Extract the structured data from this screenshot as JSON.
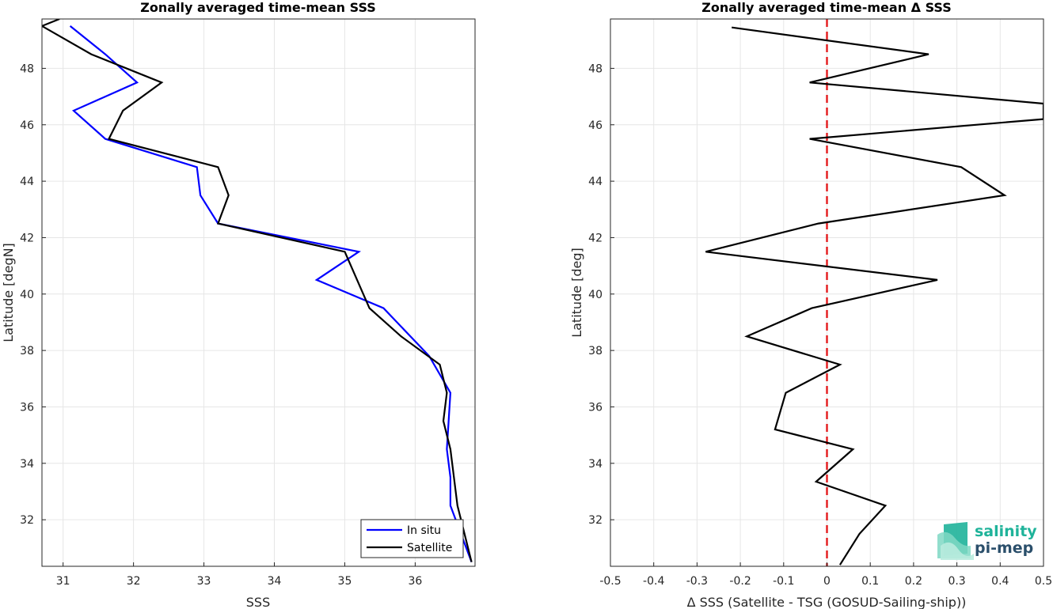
{
  "chart_data": [
    {
      "type": "line",
      "title": "Zonally averaged time-mean SSS",
      "xlabel": "SSS",
      "ylabel": "Latitude [degN]",
      "xlim": [
        30.7,
        36.85
      ],
      "ylim": [
        30.35,
        49.75
      ],
      "xticks": [
        31,
        32,
        33,
        34,
        35,
        36
      ],
      "yticks": [
        32,
        34,
        36,
        38,
        40,
        42,
        44,
        46,
        48
      ],
      "grid": true,
      "legend": "bottom-right",
      "series": [
        {
          "name": "In situ",
          "color": "#0000ff",
          "x": [
            31.1,
            31.6,
            32.05,
            31.15,
            31.6,
            32.9,
            32.95,
            33.2,
            35.2,
            34.6,
            35.55,
            36.2,
            36.5,
            36.45,
            36.5,
            36.5,
            36.8
          ],
          "y": [
            49.5,
            48.5,
            47.5,
            46.5,
            45.5,
            44.5,
            43.5,
            42.5,
            41.5,
            40.5,
            39.5,
            37.8,
            36.5,
            34.5,
            33.5,
            32.5,
            30.5
          ]
        },
        {
          "name": "Satellite",
          "color": "#000000",
          "x": [
            30.95,
            30.7,
            31.4,
            32.4,
            31.85,
            31.65,
            33.2,
            33.35,
            33.2,
            35.0,
            35.35,
            35.8,
            36.35,
            36.45,
            36.4,
            36.5,
            36.6,
            36.8
          ],
          "y": [
            49.75,
            49.5,
            48.5,
            47.5,
            46.5,
            45.5,
            44.5,
            43.5,
            42.5,
            41.5,
            39.5,
            38.5,
            37.5,
            36.5,
            35.5,
            34.5,
            32.5,
            30.5
          ]
        }
      ]
    },
    {
      "type": "line",
      "title": "Zonally averaged time-mean Δ SSS",
      "xlabel": "Δ SSS (Satellite - TSG (GOSUD-Sailing-ship))",
      "ylabel": "Latitude [deg]",
      "xlim": [
        -0.5,
        0.5
      ],
      "ylim": [
        30.35,
        49.75
      ],
      "xticks": [
        -0.5,
        -0.4,
        -0.3,
        -0.2,
        -0.1,
        0,
        0.1,
        0.2,
        0.3,
        0.4,
        0.5
      ],
      "xtick_labels": [
        "-0.5",
        "-0.4",
        "-0.3",
        "-0.2",
        "-0.1",
        "0",
        "0.1",
        "0.2",
        "0.3",
        "0.4",
        "0.5"
      ],
      "yticks": [
        32,
        34,
        36,
        38,
        40,
        42,
        44,
        46,
        48
      ],
      "grid": true,
      "reference_line": {
        "x": 0,
        "color": "#e31a1c",
        "style": "dashed"
      },
      "series": [
        {
          "color": "#000000",
          "x": [
            -0.22,
            0.235,
            -0.04,
            0.5,
            0.5,
            -0.04,
            0.31,
            0.41,
            -0.02,
            -0.28,
            0.255,
            -0.035,
            -0.185,
            0.03,
            -0.095,
            -0.12,
            0.06,
            -0.025,
            0.135,
            0.075,
            0.03
          ],
          "y": [
            49.45,
            48.5,
            47.5,
            46.75,
            46.2,
            45.5,
            44.5,
            43.5,
            42.5,
            41.5,
            40.5,
            39.5,
            38.5,
            37.5,
            36.5,
            35.2,
            34.5,
            33.35,
            32.5,
            31.5,
            30.4
          ]
        }
      ]
    }
  ],
  "logo": {
    "line1": "salinity",
    "line2": "pi-mep",
    "color_primary": "#1fb39a",
    "color_secondary": "#2b4f6b"
  }
}
